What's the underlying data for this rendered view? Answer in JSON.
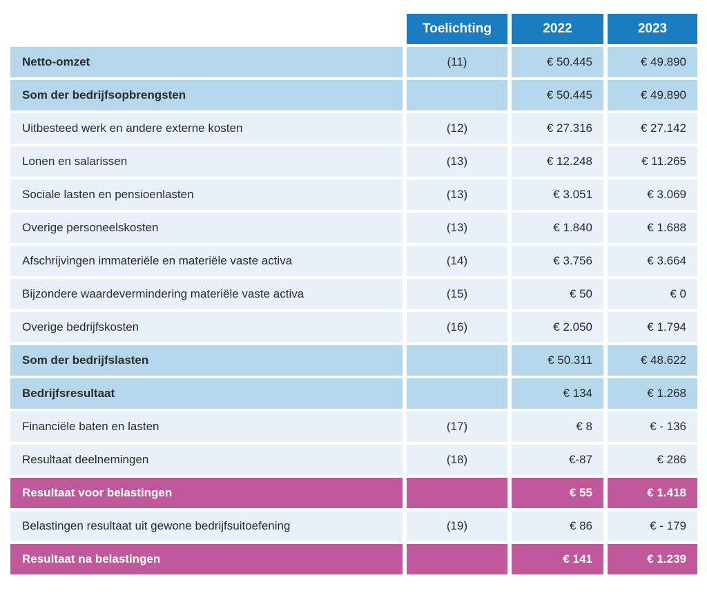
{
  "colors": {
    "header_blue": "#1a7cc1",
    "subtotal_blue": "#b4d7eb",
    "row_blue": "#e9f1f8",
    "result_pink": "#c2589c",
    "text_dark": "#2b2b2b",
    "text_white": "#ffffff"
  },
  "table": {
    "columns": [
      {
        "key": "toelichting",
        "label": "Toelichting"
      },
      {
        "key": "y2022",
        "label": "2022"
      },
      {
        "key": "y2023",
        "label": "2023"
      }
    ],
    "rows": [
      {
        "label": "Netto-omzet",
        "toelichting": "(11)",
        "y2022": "€ 50.445",
        "y2023": "€ 49.890",
        "style": "subtotal"
      },
      {
        "label": "Som der bedrijfsopbrengsten",
        "toelichting": "",
        "y2022": "€ 50.445",
        "y2023": "€ 49.890",
        "style": "subtotal"
      },
      {
        "label": "Uitbesteed werk en andere externe kosten",
        "toelichting": "(12)",
        "y2022": "€ 27.316",
        "y2023": "€ 27.142",
        "style": "normal"
      },
      {
        "label": "Lonen en salarissen",
        "toelichting": "(13)",
        "y2022": "€ 12.248",
        "y2023": "€ 11.265",
        "style": "normal"
      },
      {
        "label": "Sociale lasten en pensioenlasten",
        "toelichting": "(13)",
        "y2022": "€ 3.051",
        "y2023": "€ 3.069",
        "style": "normal"
      },
      {
        "label": "Overige personeelskosten",
        "toelichting": "(13)",
        "y2022": "€ 1.840",
        "y2023": "€ 1.688",
        "style": "normal"
      },
      {
        "label": "Afschrijvingen immateriële en materiële vaste activa",
        "toelichting": "(14)",
        "y2022": "€ 3.756",
        "y2023": "€ 3.664",
        "style": "normal"
      },
      {
        "label": "Bijzondere waardevermindering materiële vaste activa",
        "toelichting": "(15)",
        "y2022": "€ 50",
        "y2023": "€ 0",
        "style": "normal"
      },
      {
        "label": "Overige bedrijfskosten",
        "toelichting": "(16)",
        "y2022": "€ 2.050",
        "y2023": "€ 1.794",
        "style": "normal"
      },
      {
        "label": "Som der bedrijfslasten",
        "toelichting": "",
        "y2022": "€ 50.311",
        "y2023": "€ 48.622",
        "style": "subtotal"
      },
      {
        "label": "Bedrijfsresultaat",
        "toelichting": "",
        "y2022": "€ 134",
        "y2023": "€ 1.268",
        "style": "subtotal"
      },
      {
        "label": "Financiële baten en lasten",
        "toelichting": "(17)",
        "y2022": "€ 8",
        "y2023": "€ - 136",
        "style": "normal"
      },
      {
        "label": "Resultaat deelnemingen",
        "toelichting": "(18)",
        "y2022": "€-87",
        "y2023": "€ 286",
        "style": "normal"
      },
      {
        "label": "Resultaat voor belastingen",
        "toelichting": "",
        "y2022": "€ 55",
        "y2023": "€ 1.418",
        "style": "result"
      },
      {
        "label": "Belastingen resultaat uit gewone bedrijfsuitoefening",
        "toelichting": "(19)",
        "y2022": "€ 86",
        "y2023": "€ - 179",
        "style": "normal"
      },
      {
        "label": "Resultaat na belastingen",
        "toelichting": "",
        "y2022": "€ 141",
        "y2023": "€ 1.239",
        "style": "result"
      }
    ]
  }
}
